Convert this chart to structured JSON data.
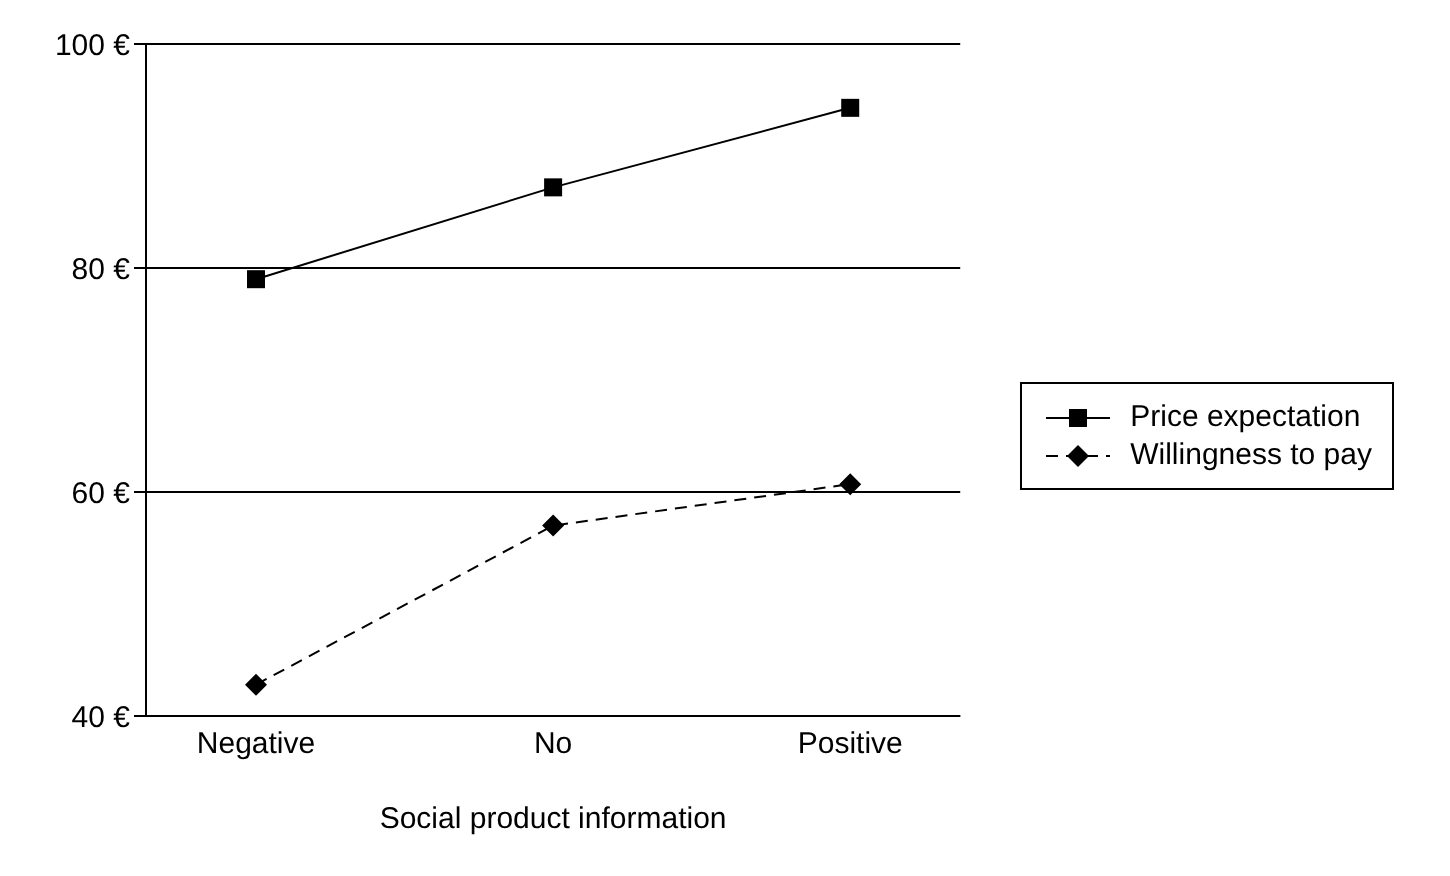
{
  "chart_data": {
    "type": "line",
    "xlabel": "Social product information",
    "categories": [
      "Negative",
      "No",
      "Positive"
    ],
    "series": [
      {
        "name": "Price expectation",
        "color": "#000000",
        "values": [
          79,
          87.2,
          94.3
        ],
        "marker": "square",
        "line_style": "solid"
      },
      {
        "name": "Willingness to pay",
        "color": "#000000",
        "values": [
          42.8,
          57,
          60.7
        ],
        "marker": "diamond",
        "line_style": "dashed"
      }
    ],
    "ylim": [
      40,
      100
    ],
    "yticks": [
      {
        "value": 40,
        "label": "40 €"
      },
      {
        "value": 60,
        "label": "60 €"
      },
      {
        "value": 80,
        "label": "80 €"
      },
      {
        "value": 100,
        "label": "100 €"
      }
    ],
    "grid": "y",
    "legend": "right"
  }
}
